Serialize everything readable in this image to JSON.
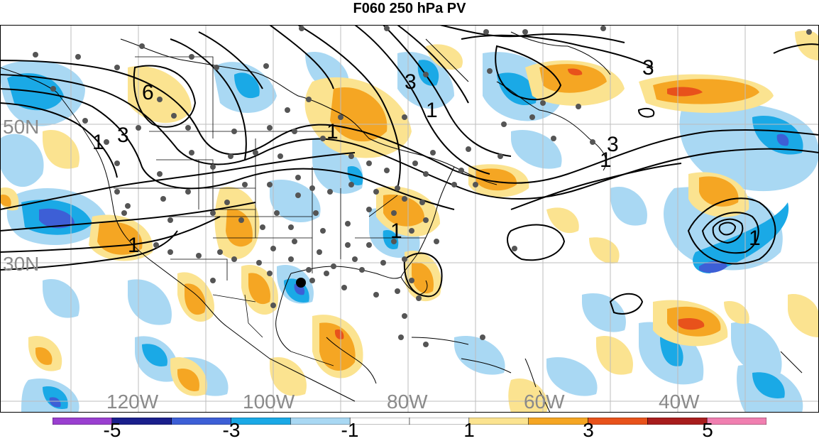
{
  "title": "F060 250 hPa PV",
  "lat_labels": [
    {
      "text": "50N"
    },
    {
      "text": "30N"
    }
  ],
  "lon_labels": [
    {
      "text": "120W"
    },
    {
      "text": "100W"
    },
    {
      "text": "80W"
    },
    {
      "text": "60W"
    },
    {
      "text": "40W"
    }
  ],
  "contour_labels": [
    "6",
    "3",
    "3",
    "1",
    "1",
    "3",
    "1",
    "1",
    "1",
    "3",
    "1",
    "1"
  ],
  "colorbar": {
    "colors": [
      "#9a3fd0",
      "#1a1f8c",
      "#3d5fd6",
      "#1aa9e6",
      "#a9d8f3",
      "#ffffff",
      "#ffffff",
      "#fbe390",
      "#f5a623",
      "#e8521b",
      "#a81d1d",
      "#f07fb0"
    ],
    "labels": [
      "-5",
      "-3",
      "-1",
      "1",
      "3",
      "5"
    ]
  },
  "legend_colors": {
    "blue_light": "#a9d8f3",
    "blue_mid": "#1aa9e6",
    "blue_dark": "#3d5fd6",
    "yellow": "#fbe390",
    "orange": "#f5a623",
    "red": "#e8521b"
  }
}
